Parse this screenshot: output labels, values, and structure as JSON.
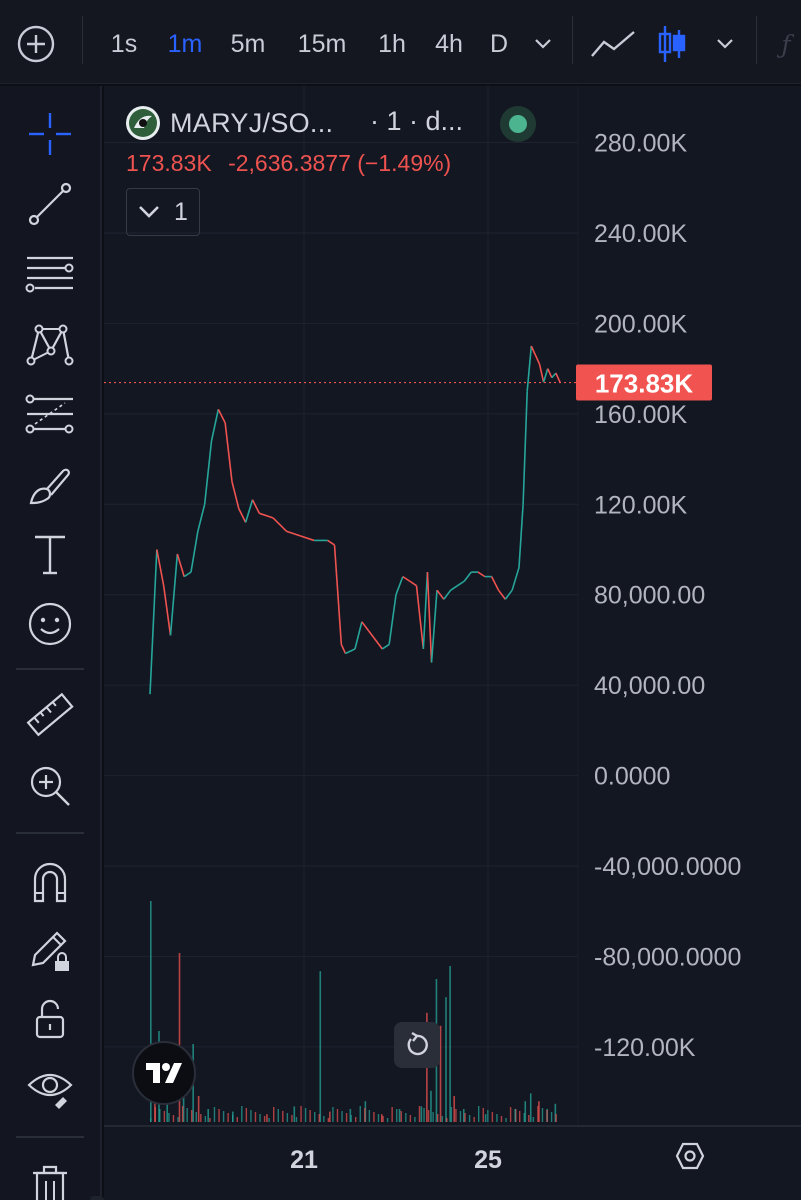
{
  "toolbar": {
    "intervals": [
      "1s",
      "1m",
      "5m",
      "15m",
      "1h",
      "4h",
      "D"
    ],
    "active_interval": "1m"
  },
  "legend": {
    "symbol": "MARYJ/SO...",
    "interval": "· 1 · d...",
    "last_price": "173.83K",
    "change": "-2,636.3877 (−1.49%)",
    "indicator_count": "1",
    "status_color": "#4cb48f"
  },
  "colors": {
    "up": "#26a69a",
    "down": "#ef5350",
    "accent": "#2962ff",
    "price_label_bg": "#f05350"
  },
  "chart_data": {
    "type": "line",
    "ylim": [
      -155000,
      305000
    ],
    "yticks": [
      {
        "label": "280.00K",
        "value": 280000
      },
      {
        "label": "240.00K",
        "value": 240000
      },
      {
        "label": "200.00K",
        "value": 200000
      },
      {
        "label": "160.00K",
        "value": 160000
      },
      {
        "label": "120.00K",
        "value": 120000
      },
      {
        "label": "80,000.00",
        "value": 80000
      },
      {
        "label": "40,000.00",
        "value": 40000
      },
      {
        "label": "0.0000",
        "value": 0
      },
      {
        "label": "-40,000.0000",
        "value": -40000
      },
      {
        "label": "-80,000.0000",
        "value": -80000
      },
      {
        "label": "-120.00K",
        "value": -120000
      }
    ],
    "xticks": [
      "21",
      "25"
    ],
    "current_price": {
      "label": "173.83K",
      "value": 173830
    },
    "series": [
      {
        "values": [
          [
            0,
            36000
          ],
          [
            0.5,
            100000
          ],
          [
            1,
            84000
          ],
          [
            1.5,
            62000
          ],
          [
            2,
            98000
          ],
          [
            2.5,
            88000
          ],
          [
            3,
            90000
          ],
          [
            3.5,
            108000
          ],
          [
            4,
            120000
          ],
          [
            4.5,
            148000
          ],
          [
            5,
            162000
          ],
          [
            5.5,
            156000
          ],
          [
            6,
            130000
          ],
          [
            6.5,
            118000
          ],
          [
            7,
            112000
          ],
          [
            7.5,
            122000
          ],
          [
            8,
            116000
          ],
          [
            9,
            114000
          ],
          [
            10,
            108000
          ],
          [
            11,
            106000
          ],
          [
            12,
            104000
          ],
          [
            13,
            104000
          ],
          [
            13.5,
            102000
          ],
          [
            14,
            58000
          ],
          [
            14.3,
            54000
          ],
          [
            15,
            56000
          ],
          [
            15.5,
            68000
          ],
          [
            16,
            64000
          ],
          [
            17,
            56000
          ],
          [
            17.5,
            58000
          ],
          [
            18,
            80000
          ],
          [
            18.5,
            88000
          ],
          [
            19,
            86000
          ],
          [
            19.5,
            84000
          ],
          [
            20,
            56000
          ],
          [
            20.3,
            90000
          ],
          [
            20.6,
            50000
          ],
          [
            21,
            82000
          ],
          [
            21.5,
            78000
          ],
          [
            22,
            82000
          ],
          [
            22.5,
            84000
          ],
          [
            23,
            86000
          ],
          [
            23.5,
            90000
          ],
          [
            24,
            90000
          ],
          [
            24.5,
            88000
          ],
          [
            25,
            88000
          ],
          [
            25.5,
            82000
          ],
          [
            26,
            78000
          ],
          [
            26.5,
            82000
          ],
          [
            27,
            92000
          ],
          [
            27.3,
            120000
          ],
          [
            27.6,
            170000
          ],
          [
            27.9,
            190000
          ],
          [
            28.2,
            186000
          ],
          [
            28.5,
            182000
          ],
          [
            28.8,
            174000
          ],
          [
            29.1,
            180000
          ],
          [
            29.4,
            176000
          ],
          [
            29.7,
            178000
          ],
          [
            30,
            174000
          ]
        ]
      }
    ],
    "volume": [
      [
        0,
        0.85
      ],
      [
        0.3,
        0.12
      ],
      [
        0.6,
        0.35
      ],
      [
        1.2,
        0.08
      ],
      [
        2.1,
        0.65
      ],
      [
        2.4,
        0.15
      ],
      [
        3.1,
        0.3
      ],
      [
        3.5,
        0.1
      ],
      [
        4.2,
        0.05
      ],
      [
        6.0,
        0.04
      ],
      [
        8.5,
        0.03
      ],
      [
        10.5,
        0.06
      ],
      [
        12.4,
        0.58
      ],
      [
        13.1,
        0.04
      ],
      [
        14.6,
        0.05
      ],
      [
        15.7,
        0.08
      ],
      [
        16.9,
        0.03
      ],
      [
        18.2,
        0.05
      ],
      [
        19.8,
        0.06
      ],
      [
        20.2,
        0.42
      ],
      [
        20.5,
        0.12
      ],
      [
        20.9,
        0.55
      ],
      [
        21.2,
        0.37
      ],
      [
        21.6,
        0.48
      ],
      [
        21.9,
        0.6
      ],
      [
        22.2,
        0.1
      ],
      [
        22.9,
        0.05
      ],
      [
        24.5,
        0.03
      ],
      [
        26.7,
        0.05
      ],
      [
        27.4,
        0.08
      ],
      [
        27.8,
        0.11
      ],
      [
        28.4,
        0.08
      ],
      [
        29.0,
        0.05
      ],
      [
        29.6,
        0.07
      ]
    ]
  }
}
